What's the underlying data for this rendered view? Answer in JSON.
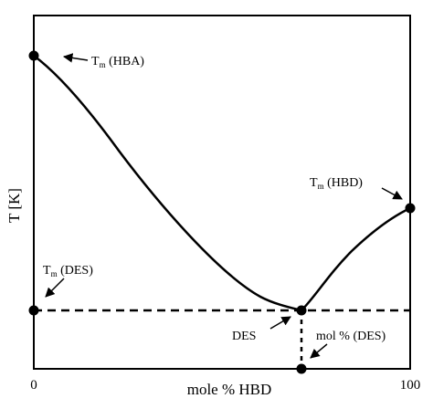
{
  "figure": {
    "y_axis_label": "T [K]",
    "x_axis_label": "mole % HBD",
    "x_tick_min": "0",
    "x_tick_max": "100",
    "labels": {
      "tm_hba_main": "T",
      "tm_hba_sub": "m",
      "tm_hba_rest": " (HBA)",
      "tm_hbd_main": "T",
      "tm_hbd_sub": "m",
      "tm_hbd_rest": " (HBD)",
      "tm_des_main": "T",
      "tm_des_sub": "m",
      "tm_des_rest": " (DES)",
      "des": "DES",
      "mol_des": "mol % (DES)"
    },
    "colors": {
      "line": "#000000",
      "background": "#ffffff"
    }
  }
}
